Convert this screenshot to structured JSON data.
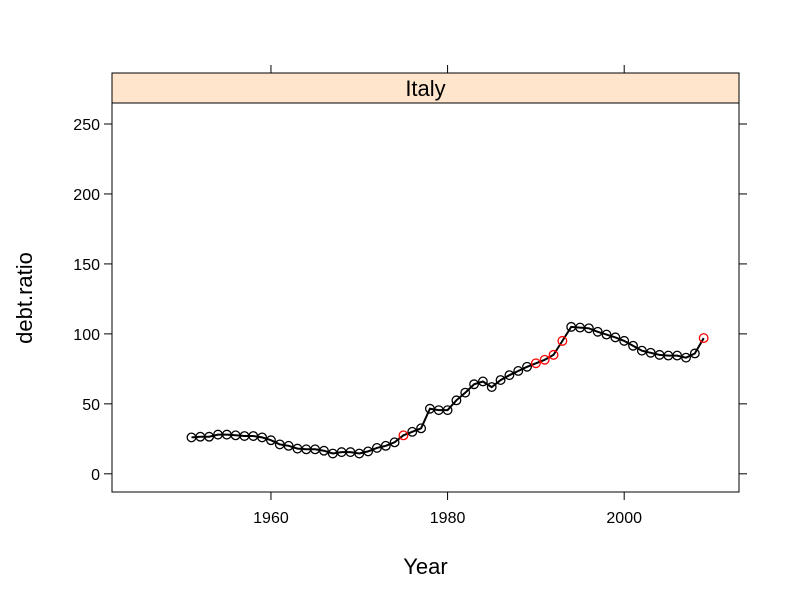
{
  "chart_data": {
    "type": "line",
    "panel": "Italy",
    "xlabel": "Year",
    "ylabel": "debt.ratio",
    "xlim": [
      1942,
      2013
    ],
    "ylim": [
      -13,
      265
    ],
    "x_ticks": [
      1960,
      1980,
      2000
    ],
    "y_ticks": [
      0,
      50,
      100,
      150,
      200,
      250
    ],
    "strip_color": "#ffe5cc",
    "line_color": "#000000",
    "series": [
      {
        "marker_color": "#000000",
        "points": [
          {
            "x": 1951,
            "y": 26
          },
          {
            "x": 1952,
            "y": 26.5
          },
          {
            "x": 1953,
            "y": 26.5
          },
          {
            "x": 1954,
            "y": 28
          },
          {
            "x": 1955,
            "y": 28
          },
          {
            "x": 1956,
            "y": 27.5
          },
          {
            "x": 1957,
            "y": 27
          },
          {
            "x": 1958,
            "y": 27
          },
          {
            "x": 1959,
            "y": 26
          },
          {
            "x": 1960,
            "y": 24
          },
          {
            "x": 1961,
            "y": 21
          },
          {
            "x": 1962,
            "y": 20
          },
          {
            "x": 1963,
            "y": 18
          },
          {
            "x": 1964,
            "y": 17.5
          },
          {
            "x": 1965,
            "y": 17.5
          },
          {
            "x": 1966,
            "y": 16.5
          },
          {
            "x": 1967,
            "y": 14.5
          },
          {
            "x": 1968,
            "y": 15.5
          },
          {
            "x": 1969,
            "y": 15.5
          },
          {
            "x": 1970,
            "y": 14.5
          },
          {
            "x": 1971,
            "y": 16
          },
          {
            "x": 1972,
            "y": 18.5
          },
          {
            "x": 1973,
            "y": 20
          },
          {
            "x": 1974,
            "y": 22.5
          },
          {
            "x": 1976,
            "y": 30
          },
          {
            "x": 1977,
            "y": 32.5
          },
          {
            "x": 1978,
            "y": 46.5
          },
          {
            "x": 1979,
            "y": 45.5
          },
          {
            "x": 1980,
            "y": 45.5
          },
          {
            "x": 1981,
            "y": 52.5
          },
          {
            "x": 1982,
            "y": 58
          },
          {
            "x": 1983,
            "y": 64
          },
          {
            "x": 1984,
            "y": 66
          },
          {
            "x": 1985,
            "y": 62
          },
          {
            "x": 1986,
            "y": 67
          },
          {
            "x": 1987,
            "y": 70.5
          },
          {
            "x": 1988,
            "y": 73.5
          },
          {
            "x": 1989,
            "y": 76.5
          },
          {
            "x": 1994,
            "y": 105
          },
          {
            "x": 1995,
            "y": 104.5
          },
          {
            "x": 1996,
            "y": 104
          },
          {
            "x": 1997,
            "y": 101.5
          },
          {
            "x": 1998,
            "y": 99.5
          },
          {
            "x": 1999,
            "y": 97.5
          },
          {
            "x": 2000,
            "y": 95
          },
          {
            "x": 2001,
            "y": 91.5
          },
          {
            "x": 2002,
            "y": 88
          },
          {
            "x": 2003,
            "y": 86.5
          },
          {
            "x": 2004,
            "y": 85
          },
          {
            "x": 2005,
            "y": 84.5
          },
          {
            "x": 2006,
            "y": 84.5
          },
          {
            "x": 2007,
            "y": 83
          },
          {
            "x": 2008,
            "y": 86
          }
        ]
      },
      {
        "marker_color": "#ff0000",
        "points": [
          {
            "x": 1975,
            "y": 27.5
          },
          {
            "x": 1990,
            "y": 79
          },
          {
            "x": 1991,
            "y": 81.5
          },
          {
            "x": 1992,
            "y": 85
          },
          {
            "x": 1993,
            "y": 95
          },
          {
            "x": 2009,
            "y": 97
          }
        ]
      }
    ]
  }
}
